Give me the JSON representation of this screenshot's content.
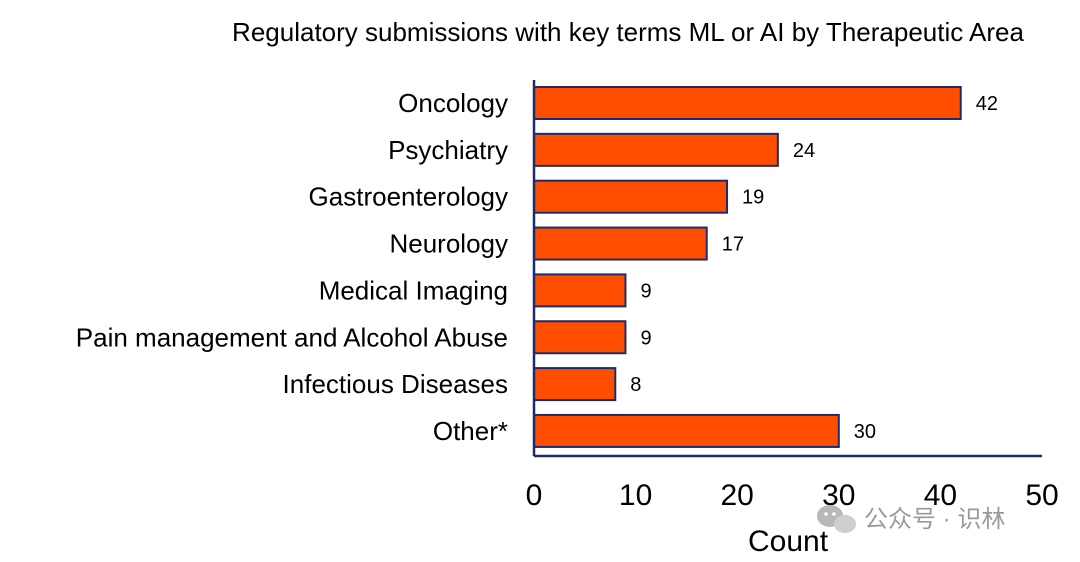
{
  "chart_data": {
    "type": "bar",
    "orientation": "horizontal",
    "title": "Regulatory submissions with key terms ML or AI by Therapeutic Area",
    "xlabel": "Count",
    "ylabel": "",
    "categories": [
      "Oncology",
      "Psychiatry",
      "Gastroenterology",
      "Neurology",
      "Medical Imaging",
      "Pain management and Alcohol Abuse",
      "Infectious Diseases",
      "Other*"
    ],
    "values": [
      42,
      24,
      19,
      17,
      9,
      9,
      8,
      30
    ],
    "data_labels": [
      "42",
      "24",
      "19",
      "17",
      "9",
      "9",
      "8",
      "30"
    ],
    "xlim": [
      0,
      50
    ],
    "xticks": [
      "0",
      "10",
      "20",
      "30",
      "40",
      "50"
    ],
    "grid": false,
    "legend": "none",
    "colors": {
      "bar": "#FF4E00",
      "bar_edge": "#1F2A6B",
      "axis": "#1F2A6B"
    }
  },
  "watermark": {
    "text": "公众号 · 识林"
  }
}
